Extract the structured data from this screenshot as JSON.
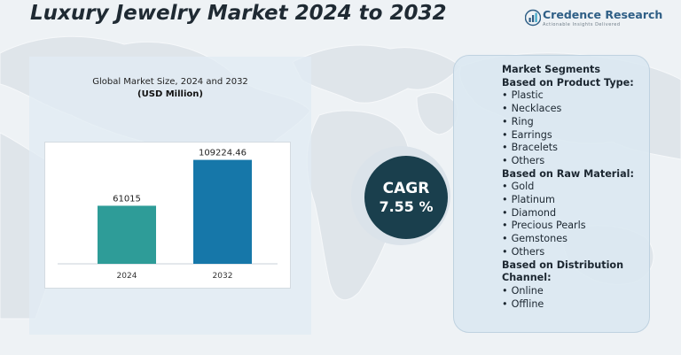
{
  "title": "Luxury Jewelry Market 2024 to 2032",
  "brand": {
    "name": "Credence Research",
    "tagline": "Actionable Insights Delivered"
  },
  "chart_data": {
    "type": "bar",
    "title": "Global Market Size, 2024 and 2032",
    "unit": "(USD Million)",
    "categories": [
      "2024",
      "2032"
    ],
    "values": [
      61015,
      109224.46
    ],
    "value_labels": [
      "61015",
      "109224.46"
    ],
    "colors": [
      "#2e9c98",
      "#1677a9"
    ],
    "ylim": [
      0,
      120000
    ],
    "grid": false
  },
  "cagr": {
    "label": "CAGR",
    "value": "7.55 %"
  },
  "segments": {
    "heading": "Market Segments",
    "groups": [
      {
        "title": "Based on Product Type:",
        "items": [
          "Plastic",
          "Necklaces",
          "Ring",
          "Earrings",
          "Bracelets",
          "Others"
        ]
      },
      {
        "title": "Based on Raw Material:",
        "items": [
          "Gold",
          "Platinum",
          "Diamond",
          "Precious Pearls",
          "Gemstones",
          "Others"
        ]
      },
      {
        "title": "Based on Distribution Channel:",
        "items": [
          "Online",
          "Offline"
        ]
      }
    ]
  },
  "colors": {
    "background": "#eef2f5",
    "cagr_circle": "#1a3f4d",
    "panel": "#dce8f1",
    "brand": "#2f5f86"
  }
}
